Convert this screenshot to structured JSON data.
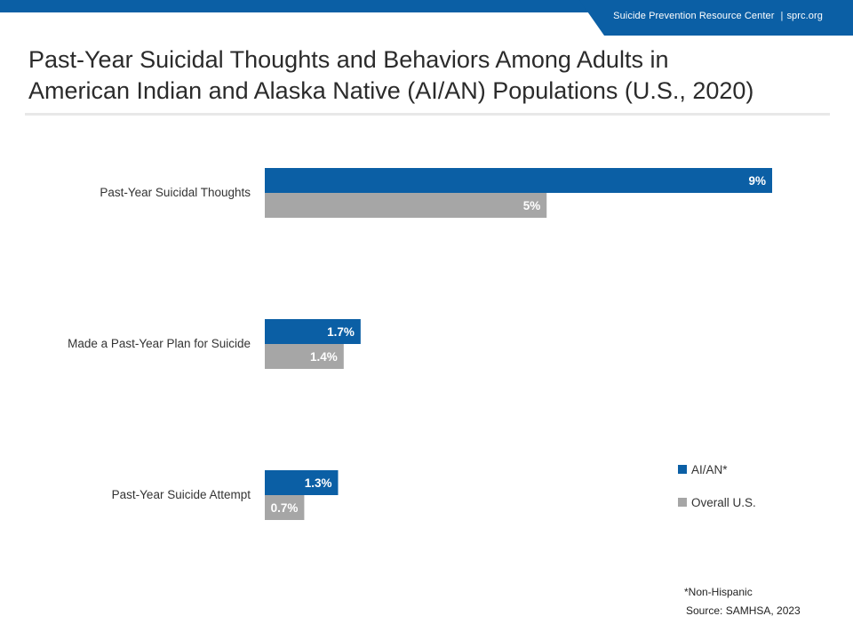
{
  "header": {
    "org_name": "Suicide Prevention Resource Center",
    "separator": "|",
    "website": "sprc.org"
  },
  "title_line1": "Past-Year Suicidal Thoughts and Behaviors Among Adults in",
  "title_line2": "American Indian and Alaska Native (AI/AN) Populations (U.S., 2020)",
  "colors": {
    "brand_blue": "#0b5fa5",
    "series_aian": "#0b5fa5",
    "series_overall": "#a6a6a6"
  },
  "chart_data": {
    "type": "bar",
    "orientation": "horizontal",
    "categories": [
      "Past-Year Suicidal Thoughts",
      "Made a Past-Year Plan for Suicide",
      "Past-Year Suicide Attempt"
    ],
    "series": [
      {
        "name": "AI/AN*",
        "values": [
          9,
          1.7,
          1.3
        ],
        "labels": [
          "9%",
          "1.7%",
          "1.3%"
        ],
        "color": "#0b5fa5"
      },
      {
        "name": "Overall U.S.",
        "values": [
          5,
          1.4,
          0.7
        ],
        "labels": [
          "5%",
          "1.4%",
          "0.7%"
        ],
        "color": "#a6a6a6"
      }
    ],
    "xlim": [
      0,
      9
    ],
    "grid": false,
    "legend_position": "right"
  },
  "footnotes": {
    "note": "*Non-Hispanic",
    "source": "Source: SAMHSA, 2023"
  }
}
